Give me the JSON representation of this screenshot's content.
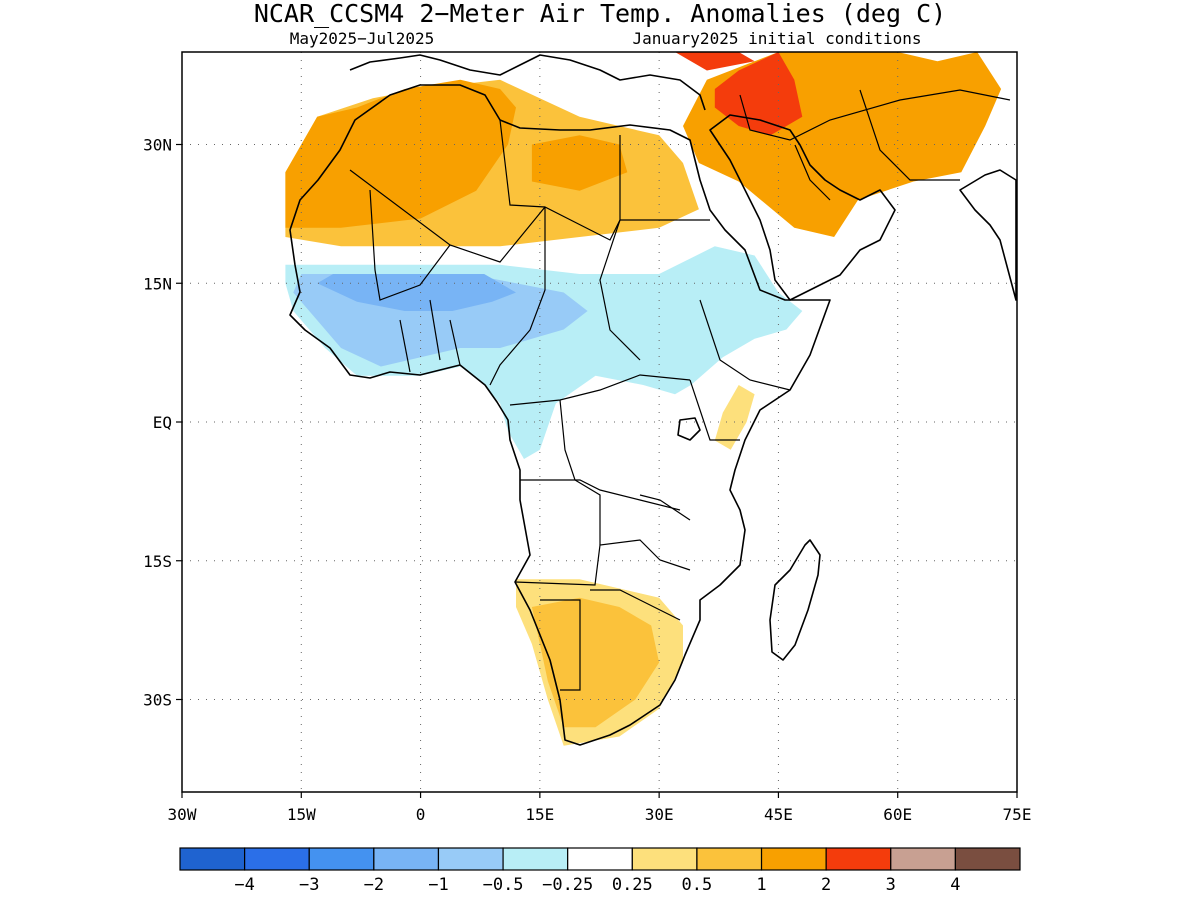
{
  "title": "NCAR_CCSM4 2−Meter Air Temp. Anomalies (deg C)",
  "subtitle_left": "May2025−Jul2025",
  "subtitle_right": "January2025 initial conditions",
  "map": {
    "region": "Africa",
    "lon_range": [
      -30,
      75
    ],
    "lat_range": [
      -40,
      40
    ],
    "grid_lines": "dotted",
    "lon_ticks": [
      {
        "value": -30,
        "label": "30W"
      },
      {
        "value": -15,
        "label": "15W"
      },
      {
        "value": 0,
        "label": "0"
      },
      {
        "value": 15,
        "label": "15E"
      },
      {
        "value": 30,
        "label": "30E"
      },
      {
        "value": 45,
        "label": "45E"
      },
      {
        "value": 60,
        "label": "60E"
      },
      {
        "value": 75,
        "label": "75E"
      }
    ],
    "lat_ticks": [
      {
        "value": 30,
        "label": "30N"
      },
      {
        "value": 15,
        "label": "15N"
      },
      {
        "value": 0,
        "label": "EQ"
      },
      {
        "value": -15,
        "label": "15S"
      },
      {
        "value": -30,
        "label": "30S"
      }
    ]
  },
  "colorbar": {
    "colors": [
      "#1f63d0",
      "#2b6fe8",
      "#4492f0",
      "#78b4f5",
      "#98cbf7",
      "#b8eef6",
      "#ffffff",
      "#fde07c",
      "#fbc23b",
      "#f8a000",
      "#f43c0c",
      "#c8a092",
      "#7a4e40"
    ],
    "labels": [
      "−4",
      "−3",
      "−2",
      "−1",
      "−0.5",
      "−0.25",
      "0.25",
      "0.5",
      "1",
      "2",
      "3",
      "4"
    ]
  },
  "anomaly_regions": [
    {
      "name": "north-africa-warm",
      "level": "1",
      "color": "#fbc23b",
      "polygon": [
        [
          -17,
          27
        ],
        [
          -13,
          33
        ],
        [
          -6,
          35
        ],
        [
          0,
          36
        ],
        [
          10,
          37
        ],
        [
          20,
          33
        ],
        [
          30,
          31
        ],
        [
          33,
          28
        ],
        [
          35,
          23
        ],
        [
          30,
          21
        ],
        [
          20,
          20
        ],
        [
          10,
          19
        ],
        [
          0,
          19
        ],
        [
          -10,
          19
        ],
        [
          -17,
          20
        ]
      ]
    },
    {
      "name": "north-africa-hot",
      "level": "2",
      "color": "#f8a000",
      "polygon": [
        [
          -17,
          27
        ],
        [
          -13,
          33
        ],
        [
          -8,
          34
        ],
        [
          -2,
          36
        ],
        [
          5,
          37
        ],
        [
          10,
          36
        ],
        [
          12,
          34
        ],
        [
          11,
          30
        ],
        [
          7,
          25
        ],
        [
          0,
          22
        ],
        [
          -10,
          21
        ],
        [
          -17,
          21
        ]
      ]
    },
    {
      "name": "central-sahara-hot",
      "level": "2",
      "color": "#f8a000",
      "polygon": [
        [
          14,
          30
        ],
        [
          20,
          31
        ],
        [
          25,
          30
        ],
        [
          26,
          27
        ],
        [
          20,
          25
        ],
        [
          14,
          26
        ]
      ]
    },
    {
      "name": "arabia-hot",
      "level": "2",
      "color": "#f8a000",
      "polygon": [
        [
          33,
          32
        ],
        [
          36,
          37
        ],
        [
          45,
          40
        ],
        [
          60,
          40
        ],
        [
          65,
          39
        ],
        [
          70,
          40
        ],
        [
          73,
          36
        ],
        [
          71,
          32
        ],
        [
          68,
          27
        ],
        [
          62,
          26
        ],
        [
          55,
          24
        ],
        [
          52,
          20
        ],
        [
          47,
          21
        ],
        [
          40,
          26
        ],
        [
          35,
          28
        ]
      ]
    },
    {
      "name": "levant-very-hot",
      "level": "3",
      "color": "#f43c0c",
      "polygon": [
        [
          37,
          36
        ],
        [
          40,
          38
        ],
        [
          45,
          40
        ],
        [
          47,
          37
        ],
        [
          48,
          33
        ],
        [
          44,
          31
        ],
        [
          40,
          32
        ],
        [
          37,
          34
        ]
      ]
    },
    {
      "name": "caucasus-very-hot",
      "level": "3",
      "color": "#f43c0c",
      "polygon": [
        [
          32,
          40
        ],
        [
          40,
          40
        ],
        [
          42,
          39
        ],
        [
          36,
          38
        ]
      ]
    },
    {
      "name": "sahel-cool",
      "level": "-0.5",
      "color": "#b8eef6",
      "polygon": [
        [
          -17,
          15
        ],
        [
          -16,
          12
        ],
        [
          -12,
          8
        ],
        [
          -8,
          5
        ],
        [
          0,
          5
        ],
        [
          5,
          6
        ],
        [
          8,
          4
        ],
        [
          10,
          2
        ],
        [
          11,
          -1
        ],
        [
          13,
          -4
        ],
        [
          15,
          -3
        ],
        [
          17,
          2
        ],
        [
          22,
          5
        ],
        [
          28,
          4
        ],
        [
          32,
          3
        ],
        [
          34,
          4
        ],
        [
          38,
          7
        ],
        [
          42,
          9
        ],
        [
          46,
          10
        ],
        [
          48,
          12
        ],
        [
          45,
          14
        ],
        [
          42,
          18
        ],
        [
          37,
          19
        ],
        [
          30,
          16
        ],
        [
          20,
          16
        ],
        [
          10,
          17
        ],
        [
          0,
          17
        ],
        [
          -10,
          17
        ],
        [
          -17,
          17
        ]
      ]
    },
    {
      "name": "west-africa-cooler",
      "level": "-1",
      "color": "#98cbf7",
      "polygon": [
        [
          -16,
          14
        ],
        [
          -13,
          11
        ],
        [
          -10,
          8
        ],
        [
          -5,
          6
        ],
        [
          0,
          7
        ],
        [
          5,
          8
        ],
        [
          10,
          8
        ],
        [
          14,
          9
        ],
        [
          18,
          10
        ],
        [
          21,
          12
        ],
        [
          18,
          14
        ],
        [
          12,
          15
        ],
        [
          6,
          16
        ],
        [
          0,
          16
        ],
        [
          -8,
          16
        ],
        [
          -15,
          16
        ]
      ]
    },
    {
      "name": "west-africa-coolest",
      "level": "-2",
      "color": "#78b4f5",
      "polygon": [
        [
          -13,
          15
        ],
        [
          -8,
          13
        ],
        [
          -2,
          12
        ],
        [
          4,
          12
        ],
        [
          9,
          13
        ],
        [
          12,
          14
        ],
        [
          8,
          16
        ],
        [
          2,
          16
        ],
        [
          -5,
          16
        ],
        [
          -11,
          16
        ]
      ]
    },
    {
      "name": "southern-africa-warm",
      "level": "0.5",
      "color": "#fde07c",
      "polygon": [
        [
          12,
          -17
        ],
        [
          20,
          -17
        ],
        [
          25,
          -18
        ],
        [
          30,
          -19
        ],
        [
          33,
          -22
        ],
        [
          33,
          -26
        ],
        [
          30,
          -31
        ],
        [
          25,
          -34
        ],
        [
          18,
          -35
        ],
        [
          16,
          -30
        ],
        [
          14,
          -24
        ],
        [
          12,
          -20
        ]
      ]
    },
    {
      "name": "southern-africa-hot",
      "level": "1",
      "color": "#fbc23b",
      "polygon": [
        [
          14,
          -20
        ],
        [
          20,
          -19
        ],
        [
          25,
          -20
        ],
        [
          29,
          -22
        ],
        [
          30,
          -26
        ],
        [
          27,
          -30
        ],
        [
          22,
          -33
        ],
        [
          18,
          -33
        ],
        [
          16,
          -28
        ],
        [
          15,
          -24
        ]
      ]
    },
    {
      "name": "east-africa-warm",
      "level": "0.5",
      "color": "#fde07c",
      "polygon": [
        [
          37,
          -2
        ],
        [
          39,
          -3
        ],
        [
          41,
          0
        ],
        [
          42,
          3
        ],
        [
          40,
          4
        ],
        [
          38,
          1
        ]
      ]
    }
  ]
}
